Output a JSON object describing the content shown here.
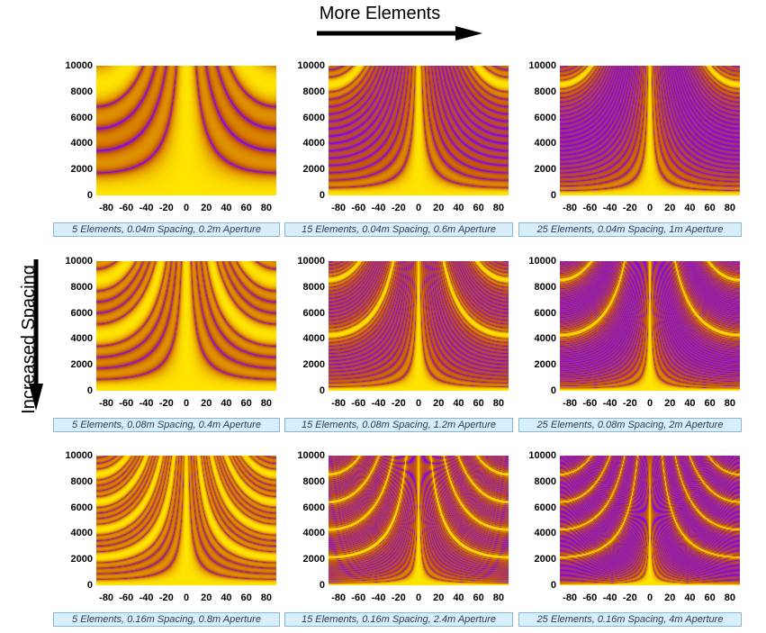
{
  "header": {
    "more_elements": "More Elements"
  },
  "sidebar": {
    "increased_spacing": "Increased Spacing"
  },
  "colors": {
    "low": "#7a00ff",
    "mid": "#c85a00",
    "high": "#ffe400"
  },
  "chart_data": [
    {
      "type": "heatmap",
      "caption": "5 Elements, 0.04m Spacing, 0.2m Aperture",
      "elements": 5,
      "spacing": 0.04,
      "x_ticks": [
        "-80",
        "-60",
        "-40",
        "-20",
        "0",
        "20",
        "40",
        "60",
        "80"
      ],
      "y_ticks": [
        "10000",
        "8000",
        "6000",
        "4000",
        "2000",
        "0"
      ],
      "xlim": [
        -90,
        90
      ],
      "ylim": [
        0,
        10000
      ]
    },
    {
      "type": "heatmap",
      "caption": "15 Elements, 0.04m Spacing, 0.6m Aperture",
      "elements": 15,
      "spacing": 0.04,
      "x_ticks": [
        "-80",
        "-60",
        "-40",
        "-20",
        "0",
        "20",
        "40",
        "60",
        "80"
      ],
      "y_ticks": [
        "10000",
        "8000",
        "6000",
        "4000",
        "2000",
        "0"
      ],
      "xlim": [
        -90,
        90
      ],
      "ylim": [
        0,
        10000
      ]
    },
    {
      "type": "heatmap",
      "caption": "25 Elements, 0.04m Spacing, 1m Aperture",
      "elements": 25,
      "spacing": 0.04,
      "x_ticks": [
        "-80",
        "-60",
        "-40",
        "-20",
        "0",
        "20",
        "40",
        "60",
        "80"
      ],
      "y_ticks": [
        "10000",
        "8000",
        "6000",
        "4000",
        "2000",
        "0"
      ],
      "xlim": [
        -90,
        90
      ],
      "ylim": [
        0,
        10000
      ]
    },
    {
      "type": "heatmap",
      "caption": "5 Elements, 0.08m Spacing, 0.4m Aperture",
      "elements": 5,
      "spacing": 0.08,
      "x_ticks": [
        "-80",
        "-60",
        "-40",
        "-20",
        "0",
        "20",
        "40",
        "60",
        "80"
      ],
      "y_ticks": [
        "10000",
        "8000",
        "6000",
        "4000",
        "2000",
        "0"
      ],
      "xlim": [
        -90,
        90
      ],
      "ylim": [
        0,
        10000
      ]
    },
    {
      "type": "heatmap",
      "caption": "15 Elements, 0.08m Spacing, 1.2m Aperture",
      "elements": 15,
      "spacing": 0.08,
      "x_ticks": [
        "-80",
        "-60",
        "-40",
        "-20",
        "0",
        "20",
        "40",
        "60",
        "80"
      ],
      "y_ticks": [
        "10000",
        "8000",
        "6000",
        "4000",
        "2000",
        "0"
      ],
      "xlim": [
        -90,
        90
      ],
      "ylim": [
        0,
        10000
      ]
    },
    {
      "type": "heatmap",
      "caption": "25 Elements, 0.08m Spacing, 2m Aperture",
      "elements": 25,
      "spacing": 0.08,
      "x_ticks": [
        "-80",
        "-60",
        "-40",
        "-20",
        "0",
        "20",
        "40",
        "60",
        "80"
      ],
      "y_ticks": [
        "10000",
        "8000",
        "6000",
        "4000",
        "2000",
        "0"
      ],
      "xlim": [
        -90,
        90
      ],
      "ylim": [
        0,
        10000
      ]
    },
    {
      "type": "heatmap",
      "caption": "5 Elements, 0.16m Spacing, 0.8m Aperture",
      "elements": 5,
      "spacing": 0.16,
      "x_ticks": [
        "-80",
        "-60",
        "-40",
        "-20",
        "0",
        "20",
        "40",
        "60",
        "80"
      ],
      "y_ticks": [
        "10000",
        "8000",
        "6000",
        "4000",
        "2000",
        "0"
      ],
      "xlim": [
        -90,
        90
      ],
      "ylim": [
        0,
        10000
      ]
    },
    {
      "type": "heatmap",
      "caption": "15 Elements, 0.16m Spacing, 2.4m Aperture",
      "elements": 15,
      "spacing": 0.16,
      "x_ticks": [
        "-80",
        "-60",
        "-40",
        "-20",
        "0",
        "20",
        "40",
        "60",
        "80"
      ],
      "y_ticks": [
        "10000",
        "8000",
        "6000",
        "4000",
        "2000",
        "0"
      ],
      "xlim": [
        -90,
        90
      ],
      "ylim": [
        0,
        10000
      ]
    },
    {
      "type": "heatmap",
      "caption": "25 Elements, 0.16m Spacing, 4m Aperture",
      "elements": 25,
      "spacing": 0.16,
      "x_ticks": [
        "-80",
        "-60",
        "-40",
        "-20",
        "0",
        "20",
        "40",
        "60",
        "80"
      ],
      "y_ticks": [
        "10000",
        "8000",
        "6000",
        "4000",
        "2000",
        "0"
      ],
      "xlim": [
        -90,
        90
      ],
      "ylim": [
        0,
        10000
      ]
    }
  ]
}
